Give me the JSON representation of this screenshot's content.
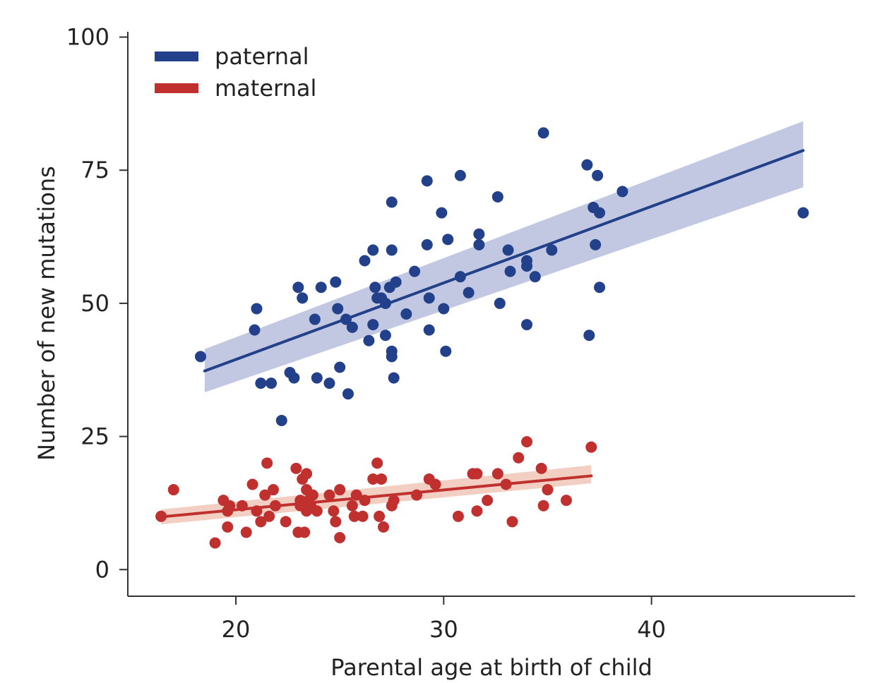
{
  "chart_data": {
    "type": "scatter",
    "title": "",
    "xlabel": "Parental age at birth of child",
    "ylabel": "Number of new mutations",
    "xlim": [
      14.8,
      49.8
    ],
    "ylim": [
      -5,
      101
    ],
    "xticks": [
      20,
      30,
      40
    ],
    "yticks": [
      0,
      25,
      50,
      75,
      100
    ],
    "grid": false,
    "legend_position": "top-left",
    "legend": [
      {
        "name": "paternal",
        "label": "paternal"
      },
      {
        "name": "maternal",
        "label": "maternal"
      }
    ],
    "series": [
      {
        "name": "paternal",
        "color": "#22418a",
        "band_color": "#b7bedd",
        "fit": {
          "x": [
            18.5,
            47.3
          ],
          "y": [
            37.3,
            78.7
          ]
        },
        "band": {
          "lower": [
            33.3,
            71.8
          ],
          "upper": [
            41.4,
            84.2
          ]
        },
        "points": [
          [
            18.3,
            40
          ],
          [
            20.9,
            45
          ],
          [
            21.0,
            49
          ],
          [
            21.2,
            35
          ],
          [
            21.7,
            35
          ],
          [
            22.2,
            28
          ],
          [
            22.6,
            37
          ],
          [
            22.8,
            36
          ],
          [
            23.0,
            53
          ],
          [
            23.2,
            51
          ],
          [
            23.8,
            47
          ],
          [
            23.9,
            36
          ],
          [
            24.1,
            53
          ],
          [
            24.5,
            35
          ],
          [
            24.8,
            54
          ],
          [
            24.9,
            49
          ],
          [
            25.0,
            38
          ],
          [
            25.3,
            47
          ],
          [
            25.4,
            33
          ],
          [
            25.6,
            45.5
          ],
          [
            26.2,
            58
          ],
          [
            26.4,
            43
          ],
          [
            26.6,
            60
          ],
          [
            26.6,
            46
          ],
          [
            26.7,
            53
          ],
          [
            26.8,
            51
          ],
          [
            27.0,
            51
          ],
          [
            27.2,
            50
          ],
          [
            27.2,
            44
          ],
          [
            27.4,
            53
          ],
          [
            27.5,
            69
          ],
          [
            27.5,
            60
          ],
          [
            27.5,
            41
          ],
          [
            27.5,
            40
          ],
          [
            27.6,
            36
          ],
          [
            27.7,
            54
          ],
          [
            28.2,
            48
          ],
          [
            28.6,
            56
          ],
          [
            29.2,
            73
          ],
          [
            29.2,
            61
          ],
          [
            29.3,
            51
          ],
          [
            29.3,
            45
          ],
          [
            29.9,
            67
          ],
          [
            30.0,
            49
          ],
          [
            30.1,
            41
          ],
          [
            30.2,
            62
          ],
          [
            30.8,
            55
          ],
          [
            30.8,
            74
          ],
          [
            31.2,
            52
          ],
          [
            31.7,
            61
          ],
          [
            31.7,
            63
          ],
          [
            32.6,
            70
          ],
          [
            32.7,
            50
          ],
          [
            33.1,
            60
          ],
          [
            33.2,
            56
          ],
          [
            34.0,
            58
          ],
          [
            34.0,
            57
          ],
          [
            34.0,
            46
          ],
          [
            34.4,
            55
          ],
          [
            35.2,
            60
          ],
          [
            34.8,
            82
          ],
          [
            36.9,
            76
          ],
          [
            37.0,
            44
          ],
          [
            37.2,
            68
          ],
          [
            37.3,
            61
          ],
          [
            37.4,
            74
          ],
          [
            37.5,
            67
          ],
          [
            37.5,
            53
          ],
          [
            38.6,
            71
          ],
          [
            47.3,
            67
          ]
        ]
      },
      {
        "name": "maternal",
        "color": "#c0302f",
        "band_color": "#f1c7b9",
        "fit": {
          "x": [
            16.4,
            37.1
          ],
          "y": [
            9.9,
            17.6
          ]
        },
        "band": {
          "lower": [
            8.5,
            16.2
          ],
          "upper": [
            11.3,
            19.6
          ]
        },
        "points": [
          [
            16.4,
            10
          ],
          [
            17.0,
            15
          ],
          [
            19.0,
            5
          ],
          [
            19.4,
            13
          ],
          [
            19.6,
            8
          ],
          [
            19.6,
            11
          ],
          [
            19.7,
            12
          ],
          [
            20.3,
            12
          ],
          [
            20.5,
            7
          ],
          [
            20.8,
            16
          ],
          [
            21.0,
            11
          ],
          [
            21.2,
            9
          ],
          [
            21.4,
            14
          ],
          [
            21.5,
            20
          ],
          [
            21.6,
            10
          ],
          [
            21.8,
            15
          ],
          [
            21.9,
            12
          ],
          [
            22.4,
            9
          ],
          [
            22.9,
            19
          ],
          [
            23.0,
            7
          ],
          [
            23.1,
            13
          ],
          [
            23.1,
            12
          ],
          [
            23.2,
            17
          ],
          [
            23.3,
            7
          ],
          [
            23.4,
            18
          ],
          [
            23.4,
            15
          ],
          [
            23.4,
            11
          ],
          [
            23.5,
            13
          ],
          [
            23.6,
            12
          ],
          [
            23.7,
            14
          ],
          [
            23.9,
            11
          ],
          [
            24.5,
            14
          ],
          [
            24.7,
            11
          ],
          [
            24.8,
            9
          ],
          [
            25.0,
            15
          ],
          [
            25.0,
            6
          ],
          [
            25.6,
            12
          ],
          [
            25.7,
            10
          ],
          [
            25.8,
            14
          ],
          [
            26.1,
            10
          ],
          [
            26.2,
            13
          ],
          [
            26.6,
            17
          ],
          [
            26.8,
            20
          ],
          [
            26.9,
            10
          ],
          [
            27.0,
            17
          ],
          [
            27.1,
            8
          ],
          [
            27.5,
            12
          ],
          [
            27.6,
            13
          ],
          [
            28.7,
            14
          ],
          [
            29.3,
            17
          ],
          [
            29.6,
            16
          ],
          [
            30.7,
            10
          ],
          [
            31.4,
            18
          ],
          [
            31.6,
            18
          ],
          [
            31.6,
            11
          ],
          [
            32.1,
            13
          ],
          [
            32.6,
            18
          ],
          [
            33.0,
            16
          ],
          [
            33.3,
            9
          ],
          [
            33.6,
            21
          ],
          [
            34.0,
            24
          ],
          [
            34.7,
            19
          ],
          [
            34.8,
            12
          ],
          [
            35.0,
            15
          ],
          [
            35.9,
            13
          ],
          [
            37.1,
            23
          ]
        ]
      }
    ]
  }
}
